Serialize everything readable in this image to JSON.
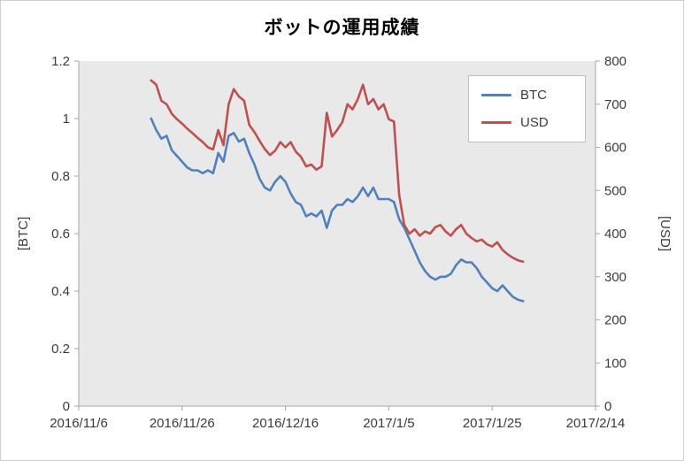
{
  "window": {
    "title": "ボットの運用成績"
  },
  "chart_data": {
    "type": "line",
    "title": "ボットの運用成績",
    "plot_bg": "#e9e9e9",
    "axis_color": "#a6a6a6",
    "label_color": "#3b3b3b",
    "x_axis": {
      "range": [
        "2016/11/6",
        "2017/2/14"
      ],
      "ticks": [
        "2016/11/6",
        "2016/11/26",
        "2016/12/16",
        "2017/1/5",
        "2017/1/25",
        "2017/2/14"
      ]
    },
    "y_left": {
      "label": "[BTC]",
      "range": [
        0,
        1.2
      ],
      "tick_values": [
        0,
        0.2,
        0.4,
        0.6,
        0.8,
        1,
        1.2
      ],
      "tick_labels": [
        "0",
        "0.2",
        "0.4",
        "0.6",
        "0.8",
        "1",
        "1.2"
      ]
    },
    "y_right": {
      "label": "[USD]",
      "range": [
        0,
        800
      ],
      "tick_values": [
        0,
        100,
        200,
        300,
        400,
        500,
        600,
        700,
        800
      ],
      "tick_labels": [
        "0",
        "100",
        "200",
        "300",
        "400",
        "500",
        "600",
        "700",
        "800"
      ]
    },
    "legend": {
      "position": "top-right",
      "entries": [
        {
          "label": "BTC",
          "color": "#4f81bd"
        },
        {
          "label": "USD",
          "color": "#c0504d"
        }
      ]
    },
    "dates": [
      "2016/11/20",
      "2016/11/21",
      "2016/11/22",
      "2016/11/23",
      "2016/11/24",
      "2016/11/25",
      "2016/11/26",
      "2016/11/27",
      "2016/11/28",
      "2016/11/29",
      "2016/11/30",
      "2016/12/1",
      "2016/12/2",
      "2016/12/3",
      "2016/12/4",
      "2016/12/5",
      "2016/12/6",
      "2016/12/7",
      "2016/12/8",
      "2016/12/9",
      "2016/12/10",
      "2016/12/11",
      "2016/12/12",
      "2016/12/13",
      "2016/12/14",
      "2016/12/15",
      "2016/12/16",
      "2016/12/17",
      "2016/12/18",
      "2016/12/19",
      "2016/12/20",
      "2016/12/21",
      "2016/12/22",
      "2016/12/23",
      "2016/12/24",
      "2016/12/25",
      "2016/12/26",
      "2016/12/27",
      "2016/12/28",
      "2016/12/29",
      "2016/12/30",
      "2016/12/31",
      "2017/1/1",
      "2017/1/2",
      "2017/1/3",
      "2017/1/4",
      "2017/1/5",
      "2017/1/6",
      "2017/1/7",
      "2017/1/8",
      "2017/1/9",
      "2017/1/10",
      "2017/1/11",
      "2017/1/12",
      "2017/1/13",
      "2017/1/14",
      "2017/1/15",
      "2017/1/16",
      "2017/1/17",
      "2017/1/18",
      "2017/1/19",
      "2017/1/20",
      "2017/1/21",
      "2017/1/22",
      "2017/1/23",
      "2017/1/24",
      "2017/1/25",
      "2017/1/26",
      "2017/1/27",
      "2017/1/28",
      "2017/1/29",
      "2017/1/30",
      "2017/1/31"
    ],
    "series": [
      {
        "name": "BTC",
        "axis": "left",
        "color": "#4f81bd",
        "values": [
          1.0,
          0.96,
          0.93,
          0.94,
          0.89,
          0.87,
          0.85,
          0.83,
          0.82,
          0.82,
          0.81,
          0.82,
          0.81,
          0.88,
          0.85,
          0.94,
          0.95,
          0.92,
          0.93,
          0.88,
          0.84,
          0.79,
          0.76,
          0.75,
          0.78,
          0.8,
          0.78,
          0.74,
          0.71,
          0.7,
          0.66,
          0.67,
          0.66,
          0.68,
          0.62,
          0.68,
          0.7,
          0.7,
          0.72,
          0.71,
          0.73,
          0.76,
          0.73,
          0.76,
          0.72,
          0.72,
          0.72,
          0.71,
          0.65,
          0.62,
          0.58,
          0.54,
          0.5,
          0.47,
          0.45,
          0.44,
          0.45,
          0.45,
          0.46,
          0.49,
          0.51,
          0.5,
          0.5,
          0.48,
          0.45,
          0.43,
          0.41,
          0.4,
          0.42,
          0.4,
          0.38,
          0.37,
          0.365
        ]
      },
      {
        "name": "USD",
        "axis": "right",
        "color": "#c0504d",
        "values": [
          755,
          745,
          708,
          700,
          678,
          665,
          655,
          643,
          633,
          622,
          612,
          600,
          595,
          640,
          605,
          700,
          735,
          718,
          708,
          652,
          635,
          615,
          596,
          582,
          592,
          612,
          600,
          612,
          590,
          578,
          556,
          560,
          548,
          556,
          680,
          625,
          640,
          658,
          700,
          688,
          712,
          745,
          700,
          712,
          688,
          700,
          665,
          660,
          490,
          420,
          400,
          410,
          395,
          405,
          400,
          415,
          420,
          405,
          395,
          410,
          420,
          400,
          390,
          382,
          386,
          375,
          370,
          380,
          362,
          352,
          344,
          338,
          335
        ]
      }
    ]
  }
}
